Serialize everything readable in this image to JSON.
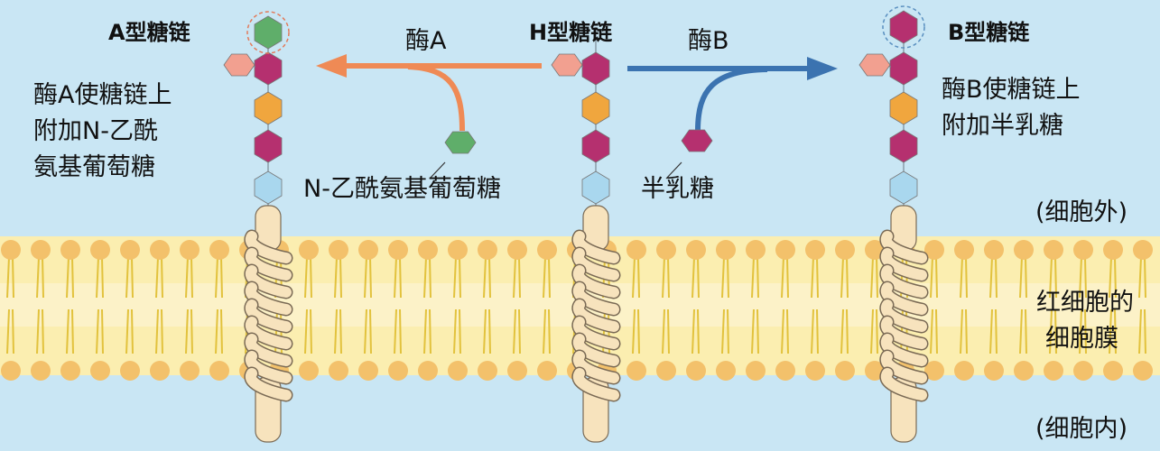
{
  "chains": [
    {
      "title": "A型糖链"
    },
    {
      "title": "H型糖链"
    },
    {
      "title": "B型糖链"
    }
  ],
  "enzymes": {
    "a": {
      "label": "酶A",
      "substrate": "N-乙酰氨基葡萄糖",
      "desc": [
        "酶A使糖链上",
        "附加N-乙酰",
        "氨基葡萄糖"
      ]
    },
    "b": {
      "label": "酶B",
      "substrate": "半乳糖",
      "desc": [
        "酶B使糖链上",
        "附加半乳糖"
      ]
    }
  },
  "regions": {
    "outside": "(细胞外)",
    "membrane": [
      "红细胞的",
      "细胞膜"
    ],
    "inside": "(细胞内)"
  },
  "colors": {
    "background": "#c9e6f4",
    "membrane_band": "#fbeeb0",
    "lipid_head": "#f3c16b",
    "lipid_tail": "#e2c23d",
    "helix": "#f7e3bd",
    "sugar_magenta": "#b5306f",
    "sugar_orange": "#f0a63e",
    "sugar_lightblue": "#a9d7ee",
    "sugar_salmon": "#f2a090",
    "sugar_green": "#5fae6a",
    "arrow_a": "#ef8a55",
    "arrow_b": "#3b73b0"
  }
}
